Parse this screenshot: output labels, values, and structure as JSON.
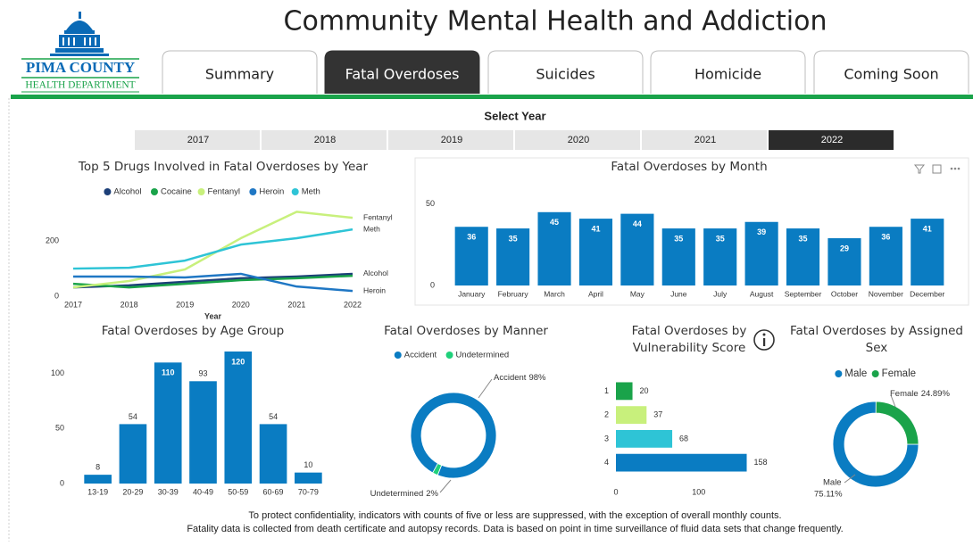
{
  "header": {
    "logo_top": "PIMA COUNTY",
    "logo_bottom": "HEALTH DEPARTMENT",
    "title": "Community Mental Health and Addiction"
  },
  "tabs": {
    "items": [
      "Summary",
      "Fatal Overdoses",
      "Suicides",
      "Homicide",
      "Coming Soon"
    ],
    "active": 1
  },
  "year_filter": {
    "label": "Select Year",
    "years": [
      "2017",
      "2018",
      "2019",
      "2020",
      "2021",
      "2022"
    ],
    "selected": 5
  },
  "chart_data": [
    {
      "type": "line",
      "title": "Top 5 Drugs Involved in Fatal Overdoses by Year",
      "x": [
        2017,
        2018,
        2019,
        2020,
        2021,
        2022
      ],
      "xlabel": "Year",
      "xlim": [
        2017,
        2022
      ],
      "xticks": [
        2017,
        2018,
        2019,
        2020,
        2021,
        2022
      ],
      "ylim": [
        0,
        320
      ],
      "yticks": [
        0,
        200
      ],
      "legend": "top",
      "series": [
        {
          "name": "Alcohol",
          "color": "#1c3f78",
          "values": [
            32,
            39,
            52,
            65,
            71,
            81
          ],
          "end_label": true
        },
        {
          "name": "Cocaine",
          "color": "#1aa34a",
          "values": [
            45,
            32,
            45,
            58,
            65,
            74
          ],
          "end_label": false
        },
        {
          "name": "Fentanyl",
          "color": "#c8f07c",
          "values": [
            32,
            55,
            97,
            210,
            306,
            284
          ],
          "end_label": true
        },
        {
          "name": "Heroin",
          "color": "#1f77c4",
          "values": [
            71,
            71,
            68,
            81,
            35,
            19
          ],
          "end_label": true
        },
        {
          "name": "Meth",
          "color": "#2ec4d6",
          "values": [
            100,
            103,
            129,
            187,
            210,
            242
          ],
          "end_label": true
        }
      ]
    },
    {
      "type": "bar",
      "title": "Fatal Overdoses by Month",
      "categories": [
        "January",
        "February",
        "March",
        "April",
        "May",
        "June",
        "July",
        "August",
        "September",
        "October",
        "November",
        "December"
      ],
      "values": [
        36,
        35,
        45,
        41,
        44,
        35,
        35,
        39,
        35,
        29,
        36,
        41
      ],
      "color": "#0a7cc2",
      "ylim": [
        0,
        52
      ],
      "yticks": [
        0,
        50
      ]
    },
    {
      "type": "bar",
      "title": "Fatal Overdoses by Age Group",
      "categories": [
        "13-19",
        "20-29",
        "30-39",
        "40-49",
        "50-59",
        "60-69",
        "70-79"
      ],
      "values": [
        8,
        54,
        110,
        93,
        120,
        54,
        10
      ],
      "color": "#0a7cc2",
      "ylim": [
        0,
        120
      ],
      "yticks": [
        0,
        50,
        100
      ]
    },
    {
      "type": "donut",
      "title": "Fatal Overdoses by Manner",
      "categories": [
        "Accident",
        "Undetermined"
      ],
      "values": [
        98,
        2
      ],
      "value_labels": [
        "98%",
        "2%"
      ],
      "colors": [
        "#0a7cc2",
        "#1fd07a"
      ],
      "legend": "top"
    },
    {
      "type": "hbar",
      "title": "Fatal Overdoses by Vulnerability Score",
      "categories": [
        "1",
        "2",
        "3",
        "4"
      ],
      "values": [
        20,
        37,
        68,
        158
      ],
      "colors": [
        "#1aa34a",
        "#c8f07c",
        "#2ec4d6",
        "#0a7cc2"
      ],
      "xlim": [
        0,
        165
      ],
      "xticks": [
        0,
        100
      ]
    },
    {
      "type": "donut",
      "title": "Fatal Overdoses by Assigned Sex",
      "categories": [
        "Male",
        "Female"
      ],
      "values": [
        75.11,
        24.89
      ],
      "value_labels": [
        "75.11%",
        "24.89%"
      ],
      "colors": [
        "#0a7cc2",
        "#1aa34a"
      ],
      "legend": "top"
    }
  ],
  "footer": [
    "To protect confidentiality, indicators with counts of five or less are suppressed, with the exception of overall monthly counts.",
    "Fatality data is collected from death certificate and autopsy records. Data is based on point in time surveillance of fluid data sets that change frequently."
  ]
}
